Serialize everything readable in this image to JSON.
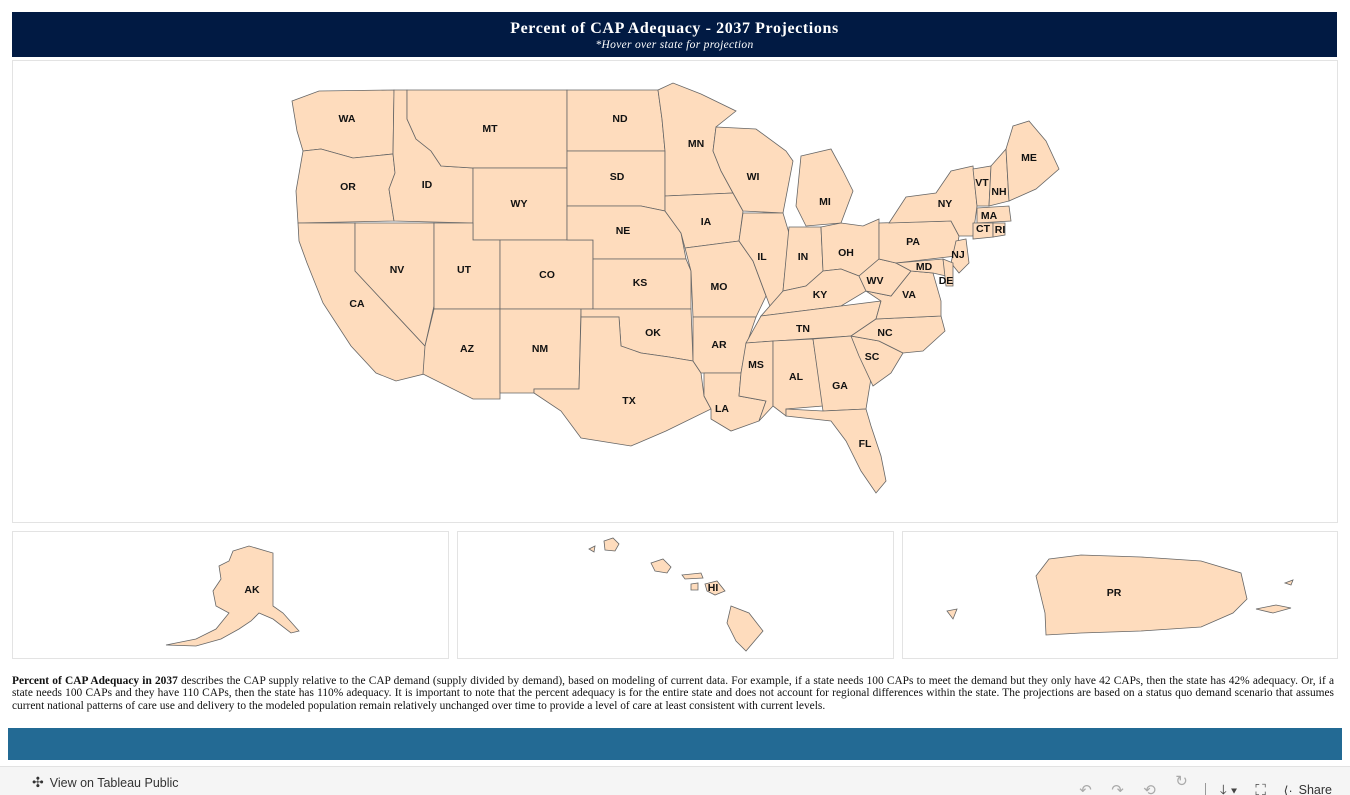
{
  "header": {
    "title": "Percent of CAP Adequacy - 2037 Projections",
    "subtitle": "*Hover over state for projection"
  },
  "map": {
    "fill_color": "#fedcbd",
    "border_color": "#666666",
    "states": [
      {
        "code": "WA"
      },
      {
        "code": "OR"
      },
      {
        "code": "CA"
      },
      {
        "code": "ID"
      },
      {
        "code": "NV"
      },
      {
        "code": "MT"
      },
      {
        "code": "WY"
      },
      {
        "code": "UT"
      },
      {
        "code": "AZ"
      },
      {
        "code": "CO"
      },
      {
        "code": "NM"
      },
      {
        "code": "ND"
      },
      {
        "code": "SD"
      },
      {
        "code": "NE"
      },
      {
        "code": "KS"
      },
      {
        "code": "OK"
      },
      {
        "code": "TX"
      },
      {
        "code": "MN"
      },
      {
        "code": "IA"
      },
      {
        "code": "MO"
      },
      {
        "code": "AR"
      },
      {
        "code": "LA"
      },
      {
        "code": "WI"
      },
      {
        "code": "IL"
      },
      {
        "code": "MI"
      },
      {
        "code": "IN"
      },
      {
        "code": "OH"
      },
      {
        "code": "KY"
      },
      {
        "code": "TN"
      },
      {
        "code": "MS"
      },
      {
        "code": "AL"
      },
      {
        "code": "GA"
      },
      {
        "code": "FL"
      },
      {
        "code": "SC"
      },
      {
        "code": "NC"
      },
      {
        "code": "VA"
      },
      {
        "code": "WV"
      },
      {
        "code": "PA"
      },
      {
        "code": "NY"
      },
      {
        "code": "VT"
      },
      {
        "code": "NH"
      },
      {
        "code": "ME"
      },
      {
        "code": "MA"
      },
      {
        "code": "CT"
      },
      {
        "code": "RI"
      },
      {
        "code": "NJ"
      },
      {
        "code": "MD"
      },
      {
        "code": "DE"
      }
    ],
    "insets": {
      "alaska": {
        "code": "AK"
      },
      "hawaii": {
        "code": "HI"
      },
      "puerto_rico": {
        "code": "PR"
      }
    }
  },
  "description": {
    "lead": "Percent of CAP Adequacy in 2037",
    "body": " describes the CAP supply relative to the CAP demand (supply divided by demand), based on modeling of current data. For example, if a state needs 100 CAPs to meet the demand but they only have 42 CAPs, then the state has 42% adequacy. Or, if a state needs 100 CAPs and they have 110 CAPs, then the state has 110% adequacy. It is important to note that the percent adequacy is for the entire state and does not account for regional differences within the state. The projections are based on a status quo demand scenario that assumes current national patterns of care use and delivery to the modeled population remain relatively unchanged over time to provide a level of care at least consistent with current levels."
  },
  "footer": {
    "view_label": "View on Tableau Public",
    "share_label": "Share",
    "icons": [
      "tableau-icon",
      "undo-icon",
      "redo-icon",
      "revert-icon",
      "refresh-icon",
      "pause-icon",
      "download-icon",
      "fullscreen-icon",
      "share-icon"
    ]
  }
}
